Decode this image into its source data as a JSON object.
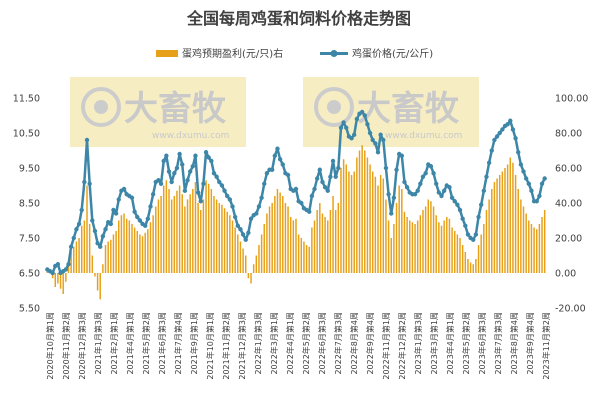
{
  "chart_data": {
    "type": "bar+line",
    "title": "全国每周鸡蛋和饲料价格走势图",
    "legend": {
      "position": "top",
      "items": [
        {
          "label": "蛋鸡预期盈利(元/只)右",
          "kind": "bar",
          "color": "#E6A118"
        },
        {
          "label": "鸡蛋价格(元/公斤)",
          "kind": "line",
          "color": "#3D86A8"
        }
      ]
    },
    "left_axis": {
      "ylim": [
        5.5,
        11.5
      ],
      "ticks": [
        "11.50",
        "10.50",
        "9.50",
        "8.50",
        "7.50",
        "6.50",
        "5.50"
      ]
    },
    "right_axis": {
      "ylim": [
        -20,
        100
      ],
      "ticks": [
        "100.00",
        "80.00",
        "60.00",
        "40.00",
        "20.00",
        "0.00",
        "-20.00"
      ]
    },
    "x_tick_labels": [
      "2020年10月第1周",
      "2020年11月第2周",
      "2020年12月第3周",
      "2021年1月第3周",
      "2021年2月第1周",
      "2021年4月第1周",
      "2021年5月第2周",
      "2021年6月第3周",
      "2021年7月第4周",
      "2021年9月第1周",
      "2021年10月第1周",
      "2021年11月第2周",
      "2021年12月第3周",
      "2022年1月第3周",
      "2022年3月第1周",
      "2022年4月第1周",
      "2022年5月第2周",
      "2022年6月第3周",
      "2022年7月第3周",
      "2022年8月第4周",
      "2022年9月第4周",
      "2022年11月第1周",
      "2022年12月第2周",
      "2023年1月第3周",
      "2023年3月第1周",
      "2023年4月第1周",
      "2023年5月第2周",
      "2023年6月第3周",
      "2023年7月第3周",
      "2023年8月第4周",
      "2023年9月第4周",
      "2023年11月第2周"
    ],
    "series": [
      {
        "name": "鸡蛋价格(元/公斤)",
        "axis": "left",
        "type": "line",
        "values": [
          6.6,
          6.55,
          6.5,
          6.7,
          6.75,
          6.5,
          6.55,
          6.6,
          6.75,
          7.25,
          7.5,
          7.75,
          7.9,
          8.3,
          9.1,
          10.3,
          9.05,
          8.0,
          7.7,
          7.35,
          7.25,
          7.55,
          7.75,
          7.95,
          7.9,
          8.3,
          8.2,
          8.6,
          8.85,
          8.9,
          8.75,
          8.7,
          8.65,
          8.25,
          8.1,
          8.0,
          7.9,
          7.85,
          8.05,
          8.4,
          8.75,
          9.1,
          9.15,
          9.05,
          9.7,
          9.85,
          9.4,
          9.1,
          9.35,
          9.5,
          9.9,
          9.6,
          8.85,
          9.15,
          9.4,
          9.55,
          9.85,
          8.8,
          8.55,
          9.05,
          9.95,
          9.8,
          9.7,
          9.35,
          9.25,
          9.1,
          9.0,
          8.85,
          8.7,
          8.6,
          8.4,
          8.1,
          7.85,
          7.75,
          7.6,
          7.45,
          7.65,
          8.05,
          8.15,
          8.2,
          8.4,
          8.65,
          9.05,
          9.35,
          9.45,
          9.45,
          9.85,
          10.05,
          9.75,
          9.6,
          9.35,
          9.3,
          8.9,
          8.85,
          8.9,
          8.55,
          8.5,
          8.35,
          8.3,
          8.25,
          8.7,
          8.9,
          9.2,
          9.45,
          9.1,
          8.95,
          8.85,
          9.25,
          9.7,
          9.25,
          9.5,
          10.65,
          10.8,
          10.65,
          10.4,
          10.35,
          10.45,
          10.9,
          11.05,
          11.1,
          11.0,
          10.75,
          10.5,
          10.3,
          10.2,
          9.95,
          10.45,
          10.3,
          9.5,
          8.75,
          8.2,
          8.65,
          9.45,
          9.9,
          9.85,
          9.1,
          8.95,
          8.8,
          8.75,
          8.75,
          8.85,
          9.05,
          9.25,
          9.35,
          9.6,
          9.55,
          9.35,
          9.05,
          8.8,
          8.7,
          8.85,
          9.0,
          8.95,
          8.65,
          8.55,
          8.45,
          8.3,
          8.05,
          7.85,
          7.6,
          7.5,
          7.45,
          7.6,
          8.1,
          8.45,
          8.85,
          9.25,
          9.65,
          10.0,
          10.3,
          10.4,
          10.5,
          10.6,
          10.7,
          10.75,
          10.85,
          10.6,
          10.35,
          9.95,
          9.6,
          9.4,
          9.2,
          9.05,
          8.85,
          8.55,
          8.55,
          8.7,
          9.05,
          9.2
        ]
      },
      {
        "name": "蛋鸡预期盈利(元/只)右",
        "axis": "right",
        "type": "bar",
        "values": [
          3,
          2,
          -3,
          -8,
          -6,
          -9,
          -12,
          -5,
          6,
          12,
          15,
          18,
          20,
          27,
          30,
          50,
          28,
          10,
          -2,
          -10,
          -15,
          5,
          16,
          18,
          19,
          22,
          24,
          30,
          33,
          34,
          31,
          30,
          28,
          26,
          24,
          22,
          21,
          23,
          25,
          29,
          33,
          38,
          42,
          44,
          50,
          53,
          48,
          42,
          44,
          47,
          50,
          45,
          38,
          42,
          45,
          48,
          52,
          40,
          36,
          42,
          53,
          51,
          48,
          44,
          42,
          40,
          39,
          37,
          35,
          33,
          30,
          26,
          22,
          18,
          14,
          10,
          -3,
          -6,
          5,
          10,
          16,
          22,
          28,
          34,
          38,
          40,
          44,
          48,
          46,
          44,
          40,
          38,
          32,
          30,
          31,
          22,
          20,
          18,
          16,
          15,
          26,
          30,
          36,
          40,
          34,
          32,
          30,
          36,
          44,
          36,
          40,
          60,
          65,
          62,
          58,
          56,
          58,
          66,
          70,
          73,
          70,
          66,
          62,
          58,
          55,
          50,
          56,
          54,
          42,
          30,
          20,
          28,
          40,
          50,
          48,
          35,
          32,
          30,
          29,
          28,
          30,
          33,
          36,
          38,
          42,
          41,
          38,
          33,
          29,
          27,
          30,
          32,
          31,
          26,
          24,
          22,
          20,
          16,
          12,
          8,
          6,
          5,
          8,
          16,
          22,
          28,
          36,
          42,
          48,
          52,
          54,
          56,
          58,
          60,
          62,
          66,
          63,
          56,
          48,
          42,
          38,
          34,
          30,
          28,
          26,
          25,
          28,
          32,
          36
        ]
      }
    ],
    "watermark": {
      "text": "大畜牧",
      "url": "www.dxumu.com"
    }
  }
}
